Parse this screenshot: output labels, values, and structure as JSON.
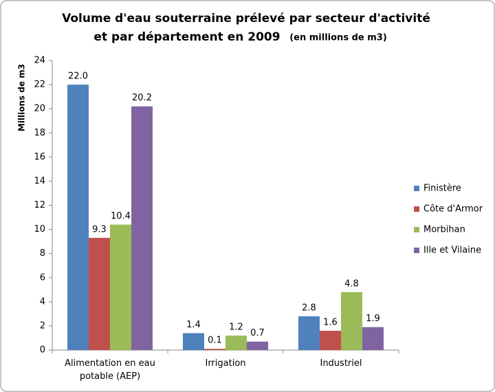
{
  "chart_data": {
    "type": "bar",
    "title": [
      "Volume d'eau souterraine prélevé par secteur d'activité",
      "et par département en 2009"
    ],
    "subtitle": "(en millions de m3)",
    "y_label": "Millions de m3",
    "categories": [
      "Alimentation en eau potable (AEP)",
      "Irrigation",
      "Industriel"
    ],
    "series": [
      {
        "name": "Finistère",
        "color": "#4f81bd",
        "values": [
          22.0,
          1.4,
          2.8
        ],
        "value_labels": [
          "22.0",
          "1.4",
          "2.8"
        ]
      },
      {
        "name": "Côte d'Armor",
        "color": "#c0504d",
        "values": [
          9.3,
          0.1,
          1.6
        ],
        "value_labels": [
          "9.3",
          "0.1",
          "1.6"
        ]
      },
      {
        "name": "Morbihan",
        "color": "#9bbb59",
        "values": [
          10.4,
          1.2,
          4.8
        ],
        "value_labels": [
          "10.4",
          "1.2",
          "4.8"
        ]
      },
      {
        "name": "Ille et Vilaine",
        "color": "#8064a2",
        "values": [
          20.2,
          0.7,
          1.9
        ],
        "value_labels": [
          "20.2",
          "0.7",
          "1.9"
        ]
      }
    ],
    "ylim": [
      0,
      24
    ],
    "yticks": [
      0,
      2,
      4,
      6,
      8,
      10,
      12,
      14,
      16,
      18,
      20,
      22,
      24
    ],
    "grid": false,
    "legend": "right"
  }
}
